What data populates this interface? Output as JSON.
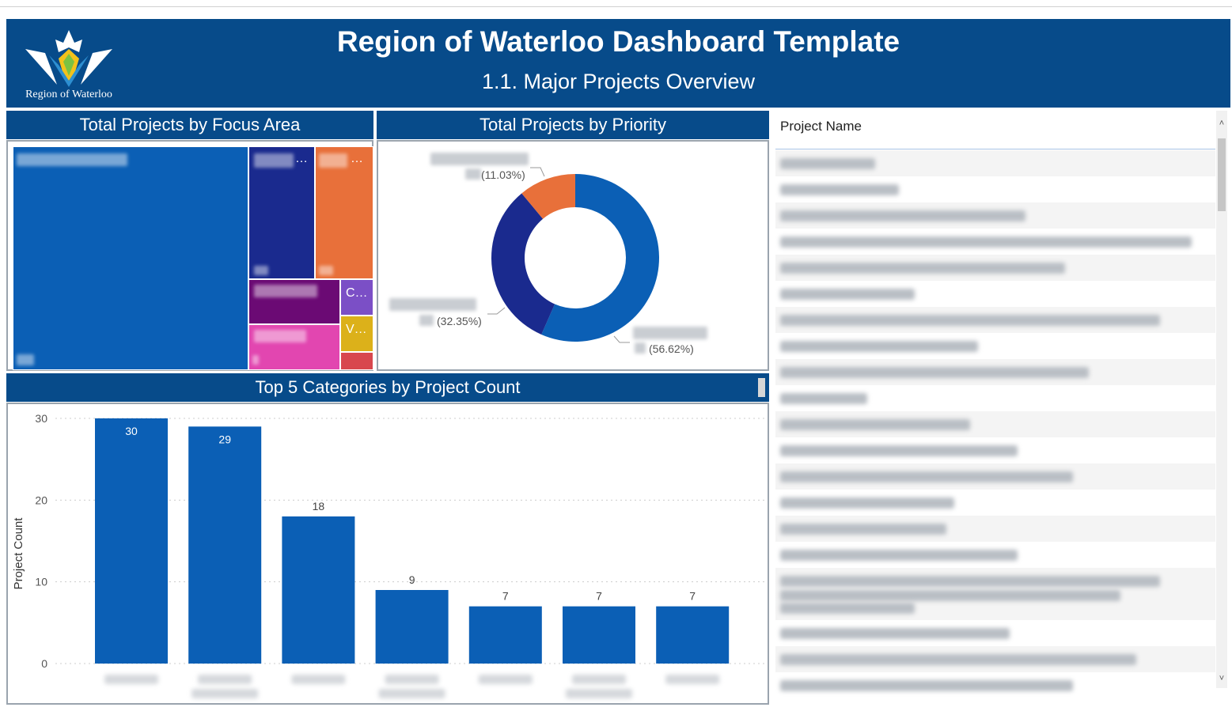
{
  "header": {
    "title": "Region of Waterloo Dashboard Template",
    "subtitle": "1.1. Major Projects Overview",
    "logo_text": "Region of Waterloo"
  },
  "focus_area": {
    "title": "Total Projects by Focus Area",
    "cells": [
      {
        "label": "",
        "color": "#0b5fb5"
      },
      {
        "label": "…",
        "color": "#1a2a8e"
      },
      {
        "label": "…",
        "color": "#e8703a"
      },
      {
        "label": "",
        "color": "#6b0a74"
      },
      {
        "label": "C…",
        "color": "#7b4fc6"
      },
      {
        "label": "",
        "color": "#e246b0"
      },
      {
        "label": "V…",
        "color": "#dcb11a"
      },
      {
        "label": "",
        "color": "#d8474e"
      }
    ]
  },
  "priority": {
    "title": "Total Projects by Priority",
    "slices": [
      {
        "value": 56.62,
        "label": "(56.62%)",
        "color": "#0b5fb5"
      },
      {
        "value": 32.35,
        "label": "(32.35%)",
        "color": "#1a2a8e"
      },
      {
        "value": 11.03,
        "label": "(11.03%)",
        "color": "#e8703a"
      }
    ]
  },
  "categories": {
    "title": "Top 5 Categories by Project Count",
    "ylabel": "Project Count"
  },
  "chart_data": {
    "type": "bar",
    "title": "Top 5 Categories by Project Count",
    "ylabel": "Project Count",
    "ylim": [
      0,
      30
    ],
    "yticks": [
      "0",
      "10",
      "20",
      "30"
    ],
    "values": [
      30,
      29,
      18,
      9,
      7,
      7,
      7
    ],
    "value_labels": [
      "30",
      "29",
      "18",
      "9",
      "7",
      "7",
      "7"
    ],
    "color": "#0b5fb5"
  },
  "table": {
    "column_header": "Project Name",
    "scroll_up": "˄",
    "scroll_down": "˅"
  }
}
